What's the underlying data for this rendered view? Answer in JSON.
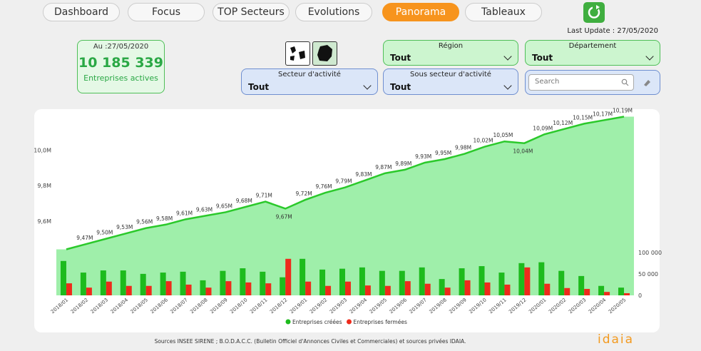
{
  "nav": {
    "tabs": [
      "Dashboard",
      "Focus",
      "TOP Secteurs",
      "Evolutions",
      "Panorama",
      "Tableaux"
    ],
    "active": 4
  },
  "last_update": "Last Update : 27/05/2020",
  "kpi": {
    "date": "Au :27/05/2020",
    "value": "10 185 339",
    "label": "Entreprises actives"
  },
  "filters": [
    {
      "label": "Région",
      "value": "Tout"
    },
    {
      "label": "Département",
      "value": "Tout"
    },
    {
      "label": "Secteur d'activité",
      "value": "Tout"
    },
    {
      "label": "Sous secteur d'activité",
      "value": "Tout"
    }
  ],
  "search_placeholder": "Search",
  "chart_data": {
    "type": "combo",
    "categories": [
      "2018/01",
      "2018/02",
      "2018/03",
      "2018/04",
      "2018/05",
      "2018/06",
      "2018/07",
      "2018/08",
      "2018/09",
      "2018/10",
      "2018/11",
      "2018/12",
      "2019/01",
      "2019/02",
      "2019/03",
      "2019/04",
      "2019/05",
      "2019/06",
      "2019/07",
      "2019/08",
      "2019/09",
      "2019/10",
      "2019/11",
      "2019/12",
      "2020/01",
      "2020/02",
      "2020/03",
      "2020/04",
      "2020/05"
    ],
    "line": {
      "color": "#2bc92b",
      "area_color": "#9fefaa",
      "values": [
        9440000,
        9470000,
        9500000,
        9530000,
        9560000,
        9580000,
        9610000,
        9630000,
        9650000,
        9680000,
        9710000,
        9670000,
        9720000,
        9760000,
        9790000,
        9830000,
        9870000,
        9890000,
        9930000,
        9950000,
        9980000,
        10020000,
        10050000,
        10040000,
        10090000,
        10120000,
        10150000,
        10170000,
        10190000
      ],
      "value_labels": [
        null,
        "9,47M",
        "9,50M",
        "9,53M",
        "9,56M",
        "9,58M",
        "9,61M",
        "9,63M",
        "9,65M",
        "9,68M",
        "9,71M",
        "9,67M",
        "9,72M",
        "9,76M",
        "9,79M",
        "9,83M",
        "9,87M",
        "9,89M",
        "9,93M",
        "9,95M",
        "9,98M",
        "10,02M",
        "10,05M",
        "10,04M",
        "10,09M",
        "10,12M",
        "10,15M",
        "10,17M",
        "10,19M"
      ]
    },
    "series": [
      {
        "name": "Entreprises créées",
        "color": "#1dbb1d",
        "axis": "y2",
        "values": [
          80000,
          53000,
          58000,
          58000,
          50000,
          53000,
          55000,
          35000,
          57000,
          63000,
          55000,
          42000,
          85000,
          60000,
          62000,
          65000,
          57000,
          57000,
          65000,
          38000,
          63000,
          68000,
          53000,
          75000,
          77000,
          57000,
          45000,
          22000,
          18000
        ]
      },
      {
        "name": "Entreprises fermées",
        "color": "#ee2b1c",
        "axis": "y2",
        "values": [
          28000,
          18000,
          32000,
          22000,
          22000,
          33000,
          25000,
          18000,
          33000,
          30000,
          28000,
          85000,
          32000,
          22000,
          32000,
          23000,
          22000,
          33000,
          27000,
          18000,
          35000,
          30000,
          25000,
          65000,
          27000,
          17000,
          15000,
          8000,
          5000
        ]
      }
    ],
    "ylim": [
      9180000,
      10200000
    ],
    "yticks": [
      {
        "value": 9600000,
        "label": "9,6M"
      },
      {
        "value": 9800000,
        "label": "9,8M"
      },
      {
        "value": 10000000,
        "label": "10,0M"
      }
    ],
    "y2lim": [
      0,
      420000
    ],
    "y2ticks": [
      0,
      {
        "value": 50000,
        "label": "50 000"
      },
      {
        "value": 100000,
        "label": "100 000"
      }
    ],
    "legend": "bottom"
  },
  "footer": {
    "source": "Sources INSEE SIRENE ; B.O.D.A.C.C. (Bulletin Officiel d'Annonces Civiles et Commerciales) et sources privées IDAIA.",
    "logo": "idaia"
  }
}
